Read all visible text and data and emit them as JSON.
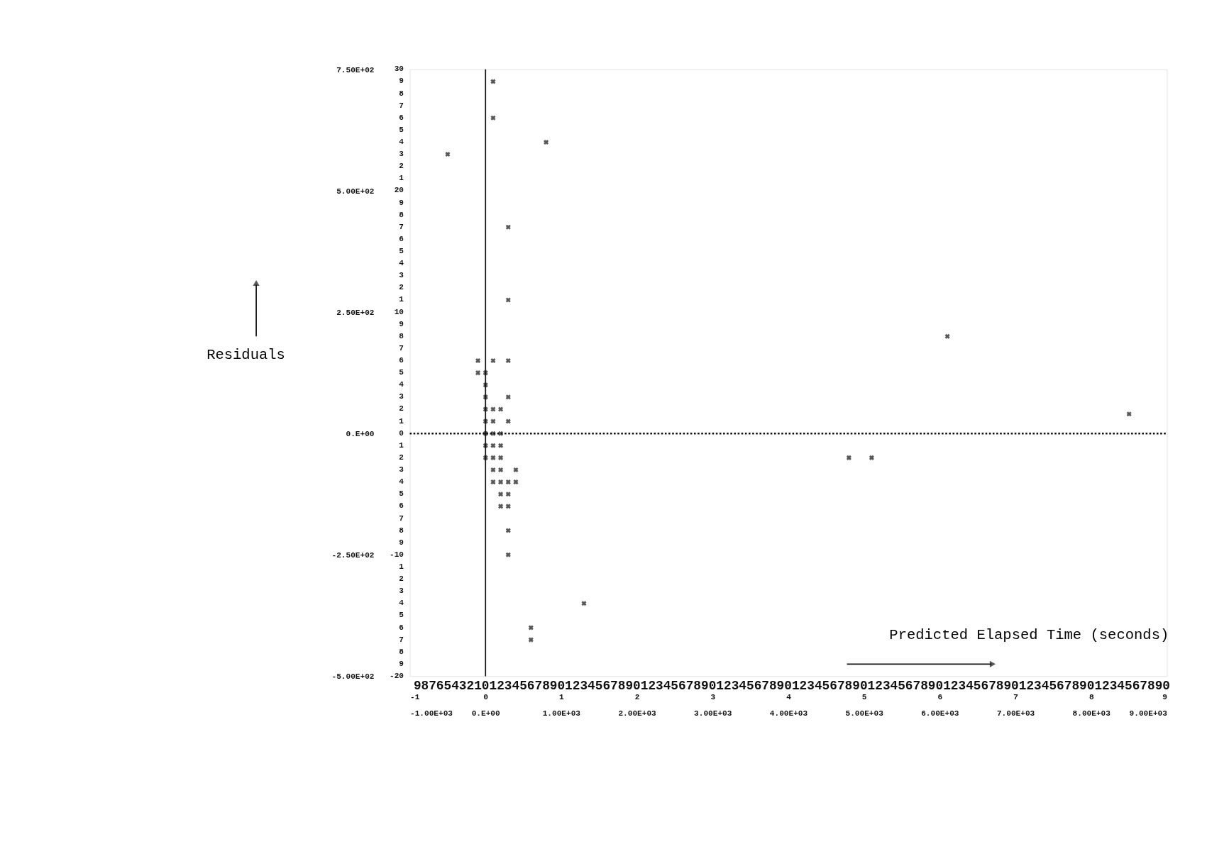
{
  "chart_data": {
    "type": "scatter",
    "xlabel": "Predicted Elapsed Time (seconds)",
    "ylabel": "Residuals",
    "series": [
      {
        "color": "#111111",
        "x": [
          100,
          100,
          800,
          -500,
          300,
          300,
          6100,
          -100,
          100,
          300,
          -100,
          0,
          0,
          0,
          300,
          0,
          100,
          200,
          0,
          100,
          300,
          8500,
          0,
          100,
          200,
          0,
          100,
          200,
          0,
          100,
          200,
          4800,
          5100,
          100,
          200,
          400,
          100,
          200,
          300,
          400,
          200,
          300,
          200,
          300,
          300,
          300,
          1300,
          600,
          600
        ],
        "values": [
          725,
          650,
          600,
          575,
          425,
          275,
          200,
          150,
          150,
          150,
          125,
          125,
          100,
          75,
          75,
          50,
          50,
          50,
          25,
          25,
          25,
          40,
          0,
          0,
          0,
          -25,
          -25,
          -25,
          -50,
          -50,
          -50,
          -50,
          -50,
          -75,
          -75,
          -75,
          -100,
          -100,
          -100,
          -100,
          -125,
          -125,
          -150,
          -150,
          -200,
          -250,
          -350,
          -400,
          -425
        ]
      }
    ],
    "marker": "cross",
    "grid": false,
    "xlim": [
      -1000,
      9000
    ],
    "ylim": [
      -500,
      750
    ],
    "xticks": [
      {
        "value": -1000,
        "label": "-1.00E+03"
      },
      {
        "value": 0,
        "label": "0.E+00"
      },
      {
        "value": 1000,
        "label": "1.00E+03"
      },
      {
        "value": 2000,
        "label": "2.00E+03"
      },
      {
        "value": 3000,
        "label": "3.00E+03"
      },
      {
        "value": 4000,
        "label": "4.00E+03"
      },
      {
        "value": 5000,
        "label": "5.00E+03"
      },
      {
        "value": 6000,
        "label": "6.00E+03"
      },
      {
        "value": 7000,
        "label": "7.00E+03"
      },
      {
        "value": 8000,
        "label": "8.00E+03"
      },
      {
        "value": 9000,
        "label": "9.00E+03"
      }
    ],
    "x2lim": [
      -1,
      9
    ],
    "x2ticks": [
      -1,
      0,
      1,
      2,
      3,
      4,
      5,
      6,
      7,
      8,
      9
    ],
    "yticks": [
      {
        "value": 750,
        "label": "7.50E+02"
      },
      {
        "value": 500,
        "label": "5.00E+02"
      },
      {
        "value": 250,
        "label": "2.50E+02"
      },
      {
        "value": 0,
        "label": "0.E+00"
      },
      {
        "value": -250,
        "label": "-2.50E+02"
      },
      {
        "value": -500,
        "label": "-5.00E+02"
      }
    ],
    "annotations": [
      "30\n9\n8\n7\n6\n5\n4\n3\n2\n1\n20\n9\n8\n7\n6\n5\n4\n3\n2\n1\n10\n9\n8\n7\n6\n5\n4\n3\n2\n1\n0\n1\n2\n3\n4\n5\n6\n7\n8\n9\n-10\n1\n2\n3\n4\n5\n6\n7\n8\n9\n-20",
      "9876543210123456789012345678901234567890123456789012345678901234567890123456789012345678901234567890"
    ],
    "ref_lines": [
      {
        "axis": "y",
        "value": 0,
        "line_style": "dotted",
        "color": "#111111"
      },
      {
        "axis": "x",
        "value": 0,
        "line_style": "solid",
        "color": "#111111"
      }
    ]
  }
}
